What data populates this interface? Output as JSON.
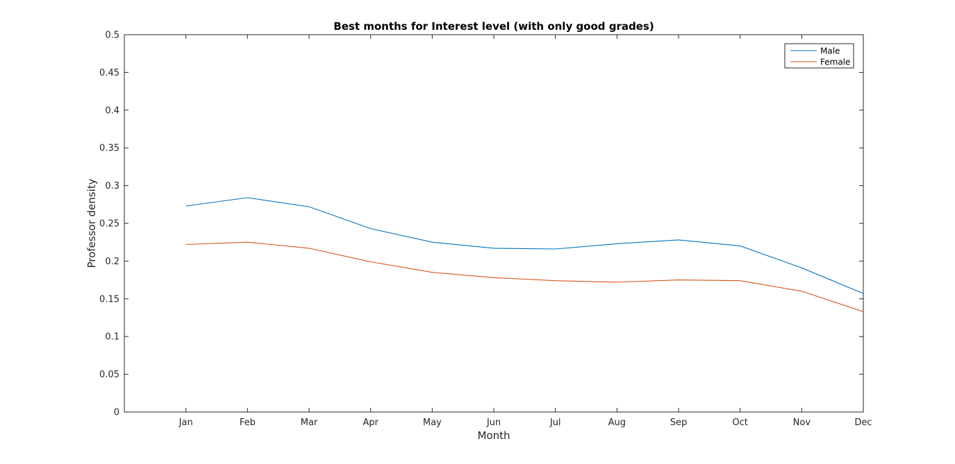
{
  "chart_data": {
    "type": "line",
    "title": "Best months for Interest level (with only good grades)",
    "xlabel": "Month",
    "ylabel": "Professor density",
    "categories": [
      "Jan",
      "Feb",
      "Mar",
      "Apr",
      "May",
      "Jun",
      "Jul",
      "Aug",
      "Sep",
      "Oct",
      "Nov",
      "Dec"
    ],
    "xlim": [
      0,
      12
    ],
    "ylim": [
      0,
      0.5
    ],
    "yticks": [
      0,
      0.05,
      0.1,
      0.15,
      0.2,
      0.25,
      0.3,
      0.35,
      0.4,
      0.45,
      0.5
    ],
    "ytick_labels": [
      "0",
      "0.05",
      "0.1",
      "0.15",
      "0.2",
      "0.25",
      "0.3",
      "0.35",
      "0.4",
      "0.45",
      "0.5"
    ],
    "grid": false,
    "legend_position": "top-right",
    "series": [
      {
        "name": "Male",
        "color": "#0072BD",
        "values": [
          0.273,
          0.284,
          0.272,
          0.243,
          0.225,
          0.217,
          0.216,
          0.223,
          0.228,
          0.22,
          0.191,
          0.157
        ]
      },
      {
        "name": "Female",
        "color": "#D95319",
        "values": [
          0.222,
          0.225,
          0.217,
          0.199,
          0.185,
          0.178,
          0.174,
          0.172,
          0.175,
          0.174,
          0.16,
          0.133
        ]
      }
    ]
  }
}
